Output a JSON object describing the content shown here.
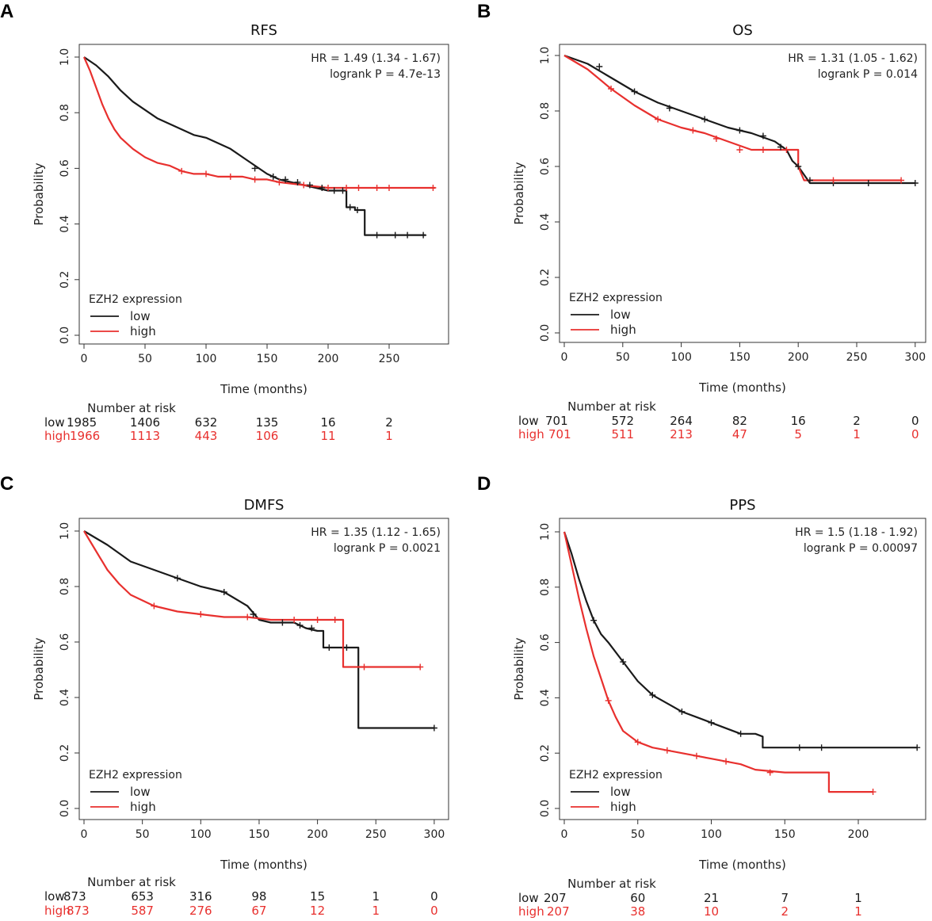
{
  "colors": {
    "low": "#1a1a1a",
    "high": "#e8302e",
    "axis": "#333333"
  },
  "chart_data": [
    {
      "panel": "A",
      "type": "line",
      "title": "RFS",
      "xlabel": "Time (months)",
      "ylabel": "Probability",
      "xlim": [
        0,
        290
      ],
      "ylim": [
        0,
        1.0
      ],
      "xticks": [
        0,
        50,
        100,
        150,
        200,
        250
      ],
      "yticks": [
        "0.0",
        "0.2",
        "0.4",
        "0.6",
        "0.8",
        "1.0"
      ],
      "stats": [
        "HR = 1.49 (1.34 - 1.67)",
        "logrank P = 4.7e-13"
      ],
      "legend": {
        "title": "EZH2 expression",
        "items": [
          "low",
          "high"
        ]
      },
      "series": [
        {
          "name": "low",
          "color": "#1a1a1a",
          "x": [
            0,
            10,
            20,
            30,
            40,
            50,
            60,
            70,
            80,
            90,
            100,
            110,
            120,
            130,
            140,
            150,
            160,
            170,
            180,
            190,
            200,
            210,
            215,
            215,
            222,
            222,
            230,
            230,
            280
          ],
          "y": [
            1.0,
            0.97,
            0.93,
            0.88,
            0.84,
            0.81,
            0.78,
            0.76,
            0.74,
            0.72,
            0.71,
            0.69,
            0.67,
            0.64,
            0.61,
            0.58,
            0.56,
            0.55,
            0.54,
            0.53,
            0.52,
            0.52,
            0.52,
            0.46,
            0.46,
            0.45,
            0.45,
            0.36,
            0.36
          ]
        },
        {
          "name": "high",
          "color": "#e8302e",
          "x": [
            0,
            5,
            10,
            15,
            20,
            25,
            30,
            40,
            50,
            60,
            70,
            80,
            90,
            100,
            110,
            120,
            130,
            140,
            150,
            160,
            180,
            200,
            220,
            240,
            260,
            288
          ],
          "y": [
            1.0,
            0.95,
            0.89,
            0.83,
            0.78,
            0.74,
            0.71,
            0.67,
            0.64,
            0.62,
            0.61,
            0.59,
            0.58,
            0.58,
            0.57,
            0.57,
            0.57,
            0.56,
            0.56,
            0.55,
            0.54,
            0.53,
            0.53,
            0.53,
            0.53,
            0.53
          ]
        }
      ],
      "censor": {
        "low": [
          [
            140,
            0.6
          ],
          [
            155,
            0.57
          ],
          [
            165,
            0.56
          ],
          [
            175,
            0.55
          ],
          [
            185,
            0.54
          ],
          [
            195,
            0.53
          ],
          [
            205,
            0.52
          ],
          [
            212,
            0.52
          ],
          [
            218,
            0.46
          ],
          [
            224,
            0.45
          ],
          [
            240,
            0.36
          ],
          [
            255,
            0.36
          ],
          [
            265,
            0.36
          ],
          [
            278,
            0.36
          ]
        ],
        "high": [
          [
            80,
            0.59
          ],
          [
            100,
            0.58
          ],
          [
            120,
            0.57
          ],
          [
            140,
            0.56
          ],
          [
            160,
            0.55
          ],
          [
            180,
            0.54
          ],
          [
            200,
            0.53
          ],
          [
            215,
            0.53
          ],
          [
            225,
            0.53
          ],
          [
            240,
            0.53
          ],
          [
            250,
            0.53
          ],
          [
            286,
            0.53
          ]
        ]
      },
      "risk_table": {
        "title": "Number at risk",
        "low": {
          "label": "low",
          "start": "1985",
          "values": [
            "1406",
            "632",
            "135",
            "16",
            "2"
          ]
        },
        "high": {
          "label": "high",
          "start": "1966",
          "values": [
            "1113",
            "443",
            "106",
            "11",
            "1"
          ]
        }
      }
    },
    {
      "panel": "B",
      "type": "line",
      "title": "OS",
      "xlabel": "Time (months)",
      "ylabel": "Probability",
      "xlim": [
        0,
        300
      ],
      "ylim": [
        0,
        1.0
      ],
      "xticks": [
        0,
        50,
        100,
        150,
        200,
        250,
        300
      ],
      "yticks": [
        "0.0",
        "0.2",
        "0.4",
        "0.6",
        "0.8",
        "1.0"
      ],
      "stats": [
        "HR = 1.31 (1.05 - 1.62)",
        "logrank P = 0.014"
      ],
      "legend": {
        "title": "EZH2 expression",
        "items": [
          "low",
          "high"
        ]
      },
      "series": [
        {
          "name": "low",
          "color": "#1a1a1a",
          "x": [
            0,
            20,
            40,
            60,
            80,
            100,
            120,
            140,
            160,
            180,
            190,
            195,
            200,
            205,
            210,
            220,
            250,
            300
          ],
          "y": [
            1.0,
            0.97,
            0.92,
            0.87,
            0.83,
            0.8,
            0.77,
            0.74,
            0.72,
            0.69,
            0.66,
            0.62,
            0.6,
            0.57,
            0.54,
            0.54,
            0.54,
            0.54
          ]
        },
        {
          "name": "high",
          "color": "#e8302e",
          "x": [
            0,
            20,
            40,
            60,
            80,
            100,
            120,
            140,
            160,
            180,
            195,
            200,
            200,
            205,
            220,
            288
          ],
          "y": [
            1.0,
            0.95,
            0.88,
            0.82,
            0.77,
            0.74,
            0.72,
            0.69,
            0.66,
            0.66,
            0.66,
            0.66,
            0.6,
            0.55,
            0.55,
            0.55
          ]
        }
      ],
      "censor": {
        "low": [
          [
            30,
            0.96
          ],
          [
            60,
            0.87
          ],
          [
            90,
            0.81
          ],
          [
            120,
            0.77
          ],
          [
            150,
            0.73
          ],
          [
            170,
            0.71
          ],
          [
            185,
            0.67
          ],
          [
            200,
            0.6
          ],
          [
            210,
            0.55
          ],
          [
            230,
            0.54
          ],
          [
            260,
            0.54
          ],
          [
            300,
            0.54
          ]
        ],
        "high": [
          [
            40,
            0.88
          ],
          [
            80,
            0.77
          ],
          [
            110,
            0.73
          ],
          [
            130,
            0.7
          ],
          [
            150,
            0.66
          ],
          [
            170,
            0.66
          ],
          [
            190,
            0.66
          ],
          [
            230,
            0.55
          ],
          [
            288,
            0.55
          ]
        ]
      },
      "risk_table": {
        "title": "Number at risk",
        "low": {
          "label": "low",
          "start": "701",
          "values": [
            "572",
            "264",
            "82",
            "16",
            "2",
            "0"
          ]
        },
        "high": {
          "label": "high",
          "start": "701",
          "values": [
            "511",
            "213",
            "47",
            "5",
            "1",
            "0"
          ]
        }
      }
    },
    {
      "panel": "C",
      "type": "line",
      "title": "DMFS",
      "xlabel": "Time (months)",
      "ylabel": "Probability",
      "xlim": [
        0,
        300
      ],
      "ylim": [
        0,
        1.0
      ],
      "xticks": [
        0,
        50,
        100,
        150,
        200,
        250,
        300
      ],
      "yticks": [
        "0.0",
        "0.2",
        "0.4",
        "0.6",
        "0.8",
        "1.0"
      ],
      "stats": [
        "HR = 1.35 (1.12 - 1.65)",
        "logrank P = 0.0021"
      ],
      "legend": {
        "title": "EZH2 expression",
        "items": [
          "low",
          "high"
        ]
      },
      "series": [
        {
          "name": "low",
          "color": "#1a1a1a",
          "x": [
            0,
            20,
            40,
            60,
            80,
            100,
            120,
            140,
            150,
            160,
            180,
            190,
            200,
            205,
            205,
            235,
            235,
            300
          ],
          "y": [
            1.0,
            0.95,
            0.89,
            0.86,
            0.83,
            0.8,
            0.78,
            0.73,
            0.68,
            0.67,
            0.67,
            0.65,
            0.64,
            0.64,
            0.58,
            0.58,
            0.29,
            0.29
          ]
        },
        {
          "name": "high",
          "color": "#e8302e",
          "x": [
            0,
            10,
            20,
            30,
            40,
            60,
            80,
            100,
            120,
            140,
            160,
            180,
            200,
            222,
            222,
            288
          ],
          "y": [
            1.0,
            0.93,
            0.86,
            0.81,
            0.77,
            0.73,
            0.71,
            0.7,
            0.69,
            0.69,
            0.68,
            0.68,
            0.68,
            0.68,
            0.51,
            0.51
          ]
        }
      ],
      "censor": {
        "low": [
          [
            80,
            0.83
          ],
          [
            120,
            0.78
          ],
          [
            145,
            0.7
          ],
          [
            170,
            0.67
          ],
          [
            185,
            0.66
          ],
          [
            195,
            0.65
          ],
          [
            210,
            0.58
          ],
          [
            225,
            0.58
          ],
          [
            300,
            0.29
          ]
        ],
        "high": [
          [
            60,
            0.73
          ],
          [
            100,
            0.7
          ],
          [
            140,
            0.69
          ],
          [
            180,
            0.68
          ],
          [
            200,
            0.68
          ],
          [
            215,
            0.68
          ],
          [
            240,
            0.51
          ],
          [
            288,
            0.51
          ]
        ]
      },
      "risk_table": {
        "title": "Number at risk",
        "low": {
          "label": "low",
          "start": "873",
          "values": [
            "653",
            "316",
            "98",
            "15",
            "1",
            "0"
          ]
        },
        "high": {
          "label": "high",
          "start": "873",
          "values": [
            "587",
            "276",
            "67",
            "12",
            "1",
            "0"
          ]
        }
      }
    },
    {
      "panel": "D",
      "type": "line",
      "title": "PPS",
      "xlabel": "Time (months)",
      "ylabel": "Probability",
      "xlim": [
        0,
        240
      ],
      "ylim": [
        0,
        1.0
      ],
      "xticks": [
        0,
        50,
        100,
        150,
        200
      ],
      "yticks": [
        "0.0",
        "0.2",
        "0.4",
        "0.6",
        "0.8",
        "1.0"
      ],
      "stats": [
        "HR = 1.5 (1.18 - 1.92)",
        "logrank P = 0.00097"
      ],
      "legend": {
        "title": "EZH2 expression",
        "items": [
          "low",
          "high"
        ]
      },
      "series": [
        {
          "name": "low",
          "color": "#1a1a1a",
          "x": [
            0,
            5,
            10,
            15,
            20,
            25,
            30,
            40,
            50,
            60,
            70,
            80,
            90,
            100,
            110,
            120,
            130,
            135,
            135,
            150,
            200,
            240
          ],
          "y": [
            1.0,
            0.92,
            0.83,
            0.75,
            0.68,
            0.63,
            0.6,
            0.53,
            0.46,
            0.41,
            0.38,
            0.35,
            0.33,
            0.31,
            0.29,
            0.27,
            0.27,
            0.26,
            0.22,
            0.22,
            0.22,
            0.22
          ]
        },
        {
          "name": "high",
          "color": "#e8302e",
          "x": [
            0,
            5,
            10,
            15,
            20,
            25,
            30,
            35,
            40,
            50,
            60,
            70,
            80,
            90,
            100,
            110,
            120,
            130,
            150,
            180,
            180,
            210
          ],
          "y": [
            1.0,
            0.88,
            0.76,
            0.65,
            0.55,
            0.47,
            0.39,
            0.33,
            0.28,
            0.24,
            0.22,
            0.21,
            0.2,
            0.19,
            0.18,
            0.17,
            0.16,
            0.14,
            0.13,
            0.13,
            0.06,
            0.06
          ]
        }
      ],
      "censor": {
        "low": [
          [
            20,
            0.68
          ],
          [
            40,
            0.53
          ],
          [
            60,
            0.41
          ],
          [
            80,
            0.35
          ],
          [
            100,
            0.31
          ],
          [
            120,
            0.27
          ],
          [
            160,
            0.22
          ],
          [
            175,
            0.22
          ],
          [
            240,
            0.22
          ]
        ],
        "high": [
          [
            30,
            0.39
          ],
          [
            50,
            0.24
          ],
          [
            70,
            0.21
          ],
          [
            90,
            0.19
          ],
          [
            110,
            0.17
          ],
          [
            140,
            0.13
          ],
          [
            210,
            0.06
          ]
        ]
      },
      "risk_table": {
        "title": "Number at risk",
        "low": {
          "label": "low",
          "start": "207",
          "values": [
            "60",
            "21",
            "7",
            "1"
          ]
        },
        "high": {
          "label": "high",
          "start": "207",
          "values": [
            "38",
            "10",
            "2",
            "1"
          ]
        }
      }
    }
  ]
}
